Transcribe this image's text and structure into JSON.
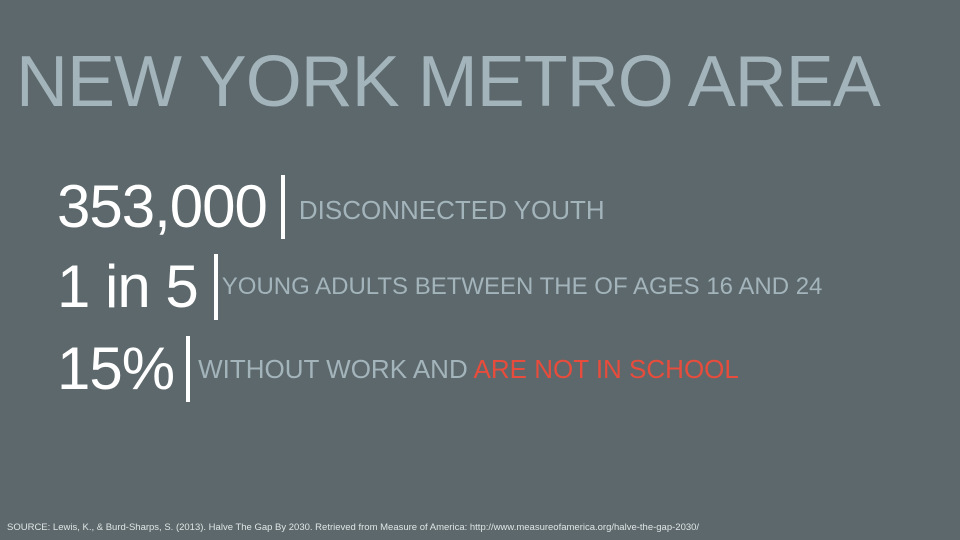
{
  "slide": {
    "title": "NEW YORK METRO AREA",
    "stats": [
      {
        "number": "353,000",
        "description": "DISCONNECTED YOUTH"
      },
      {
        "number": "1 in 5",
        "description": "YOUNG ADULTS BETWEEN THE OF AGES 16 AND 24"
      },
      {
        "number": "15%",
        "description_prefix": "WITHOUT WORK AND ",
        "description_highlight": "ARE NOT IN SCHOOL"
      }
    ],
    "source": "SOURCE: Lewis, K., & Burd-Sharps, S. (2013). Halve The Gap By 2030. Retrieved from Measure of America: http://www.measureofamerica.org/halve-the-gap-2030/"
  },
  "colors": {
    "background": "#5c686b",
    "title": "#a3b4bb",
    "number": "#ffffff",
    "description": "#a3b4bb",
    "highlight": "#e74c3c"
  }
}
